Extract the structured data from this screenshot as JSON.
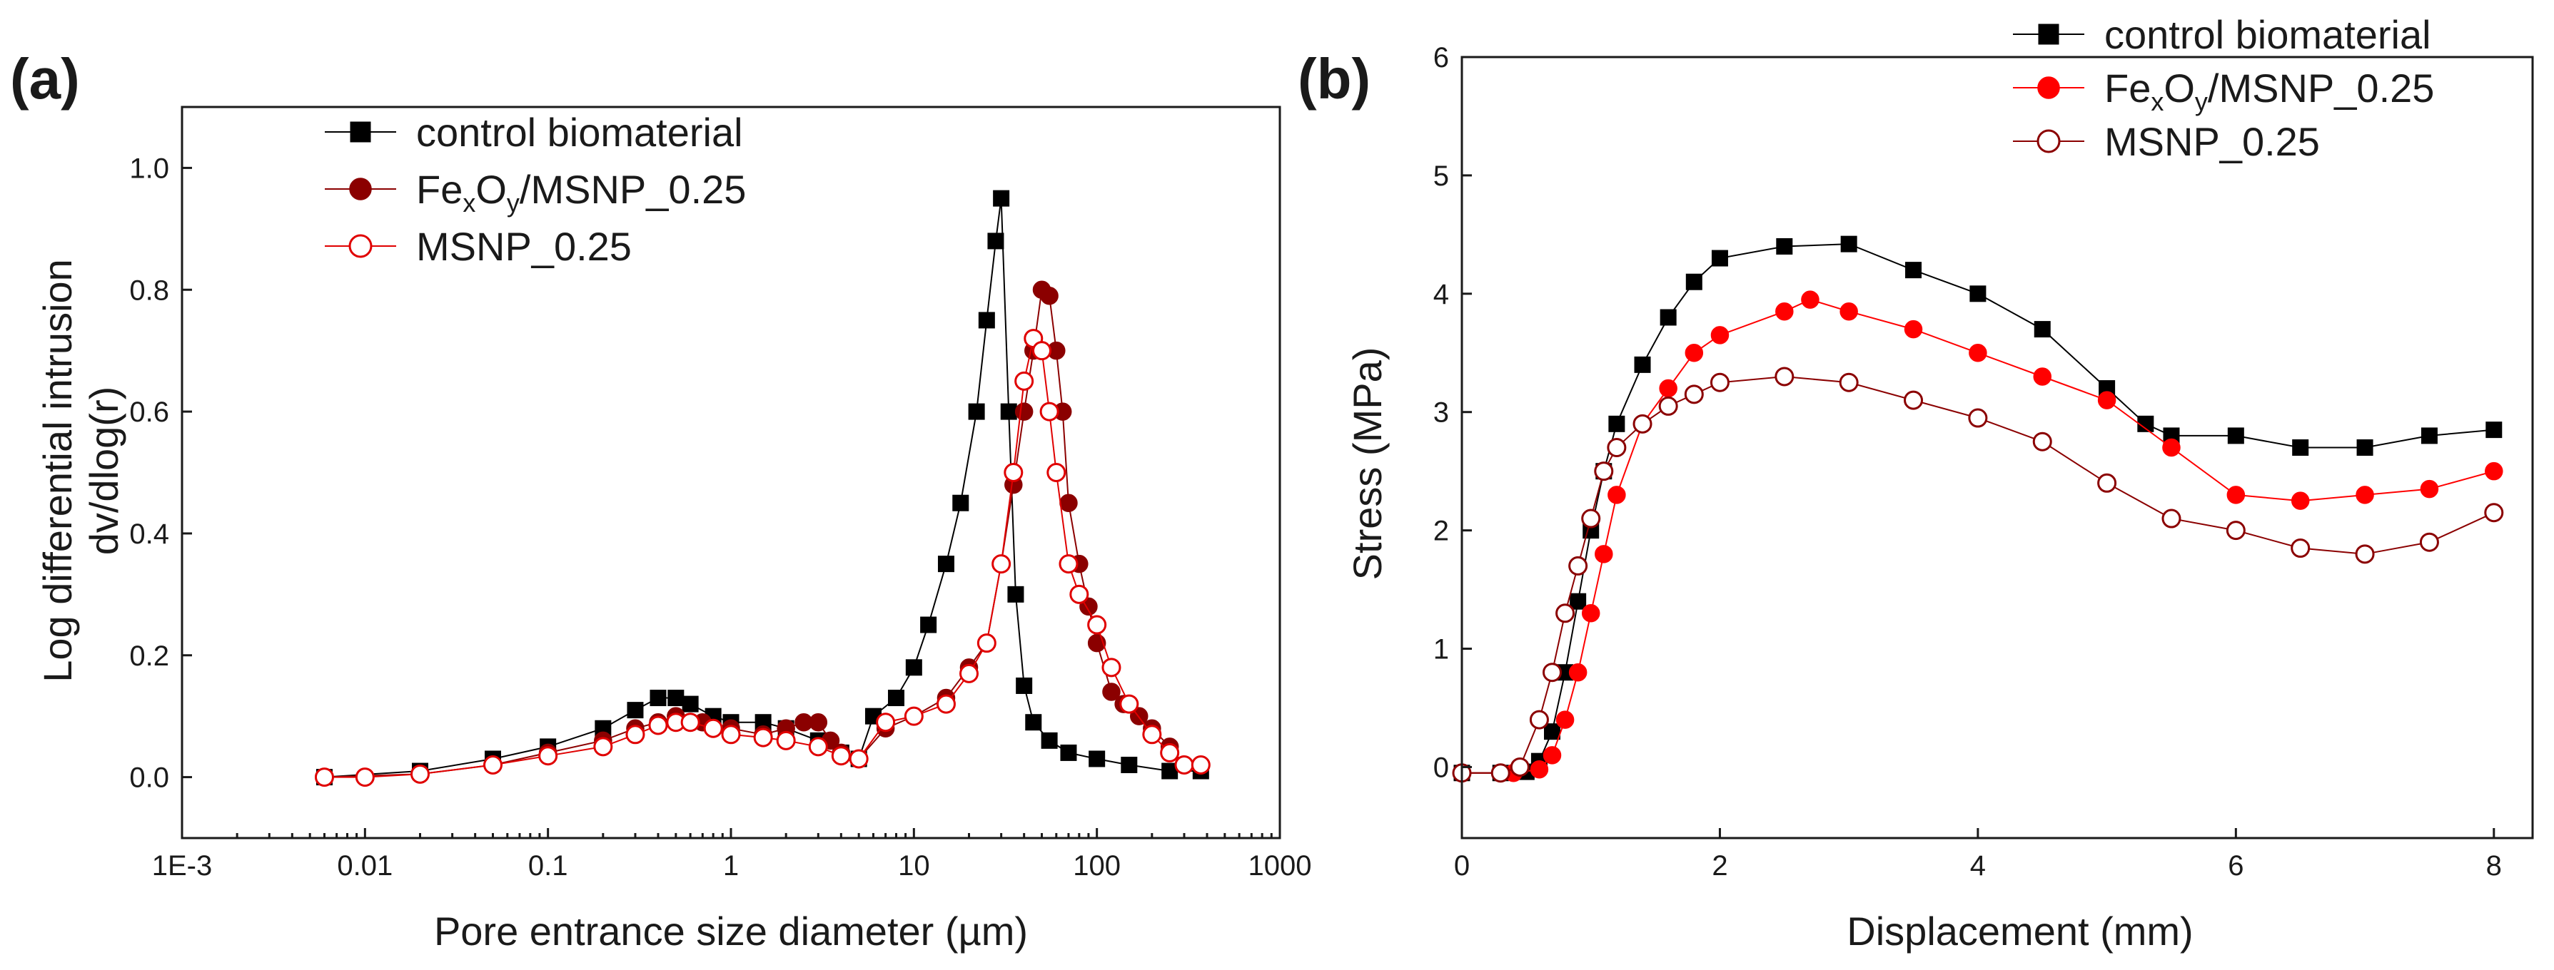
{
  "chart_data": [
    {
      "panel": "(a)",
      "type": "scatter",
      "xscale": "log",
      "xlim": [
        0.001,
        1000
      ],
      "ylim": [
        -0.1,
        1.1
      ],
      "xlabel": "Pore entrance size diameter (µm)",
      "ylabel_line1": "Log differential intrusion",
      "ylabel_line2": "dv/dlog(r)",
      "xticks": [
        0.001,
        0.01,
        0.1,
        1,
        10,
        100,
        1000
      ],
      "xtick_labels": [
        "1E-3",
        "0.01",
        "0.1",
        "1",
        "10",
        "100",
        "1000"
      ],
      "yticks": [
        0.0,
        0.2,
        0.4,
        0.6,
        0.8,
        1.0
      ],
      "ytick_labels": [
        "0.0",
        "0.2",
        "0.4",
        "0.6",
        "0.8",
        "1.0"
      ],
      "legend": {
        "position": "top-left"
      },
      "series": [
        {
          "name": "control biomaterial",
          "legend_label": "control biomaterial",
          "color": "#000000",
          "marker": "square-filled",
          "points": [
            [
              0.006,
              0
            ],
            [
              0.02,
              0.01
            ],
            [
              0.05,
              0.03
            ],
            [
              0.1,
              0.05
            ],
            [
              0.2,
              0.08
            ],
            [
              0.3,
              0.11
            ],
            [
              0.4,
              0.13
            ],
            [
              0.5,
              0.13
            ],
            [
              0.6,
              0.12
            ],
            [
              0.8,
              0.1
            ],
            [
              1,
              0.09
            ],
            [
              1.5,
              0.09
            ],
            [
              2,
              0.08
            ],
            [
              3,
              0.06
            ],
            [
              4,
              0.04
            ],
            [
              5,
              0.03
            ],
            [
              6,
              0.1
            ],
            [
              8,
              0.13
            ],
            [
              10,
              0.18
            ],
            [
              12,
              0.25
            ],
            [
              15,
              0.35
            ],
            [
              18,
              0.45
            ],
            [
              22,
              0.6
            ],
            [
              25,
              0.75
            ],
            [
              28,
              0.88
            ],
            [
              30,
              0.95
            ],
            [
              33,
              0.6
            ],
            [
              36,
              0.3
            ],
            [
              40,
              0.15
            ],
            [
              45,
              0.09
            ],
            [
              55,
              0.06
            ],
            [
              70,
              0.04
            ],
            [
              100,
              0.03
            ],
            [
              150,
              0.02
            ],
            [
              250,
              0.01
            ],
            [
              370,
              0.01
            ]
          ]
        },
        {
          "name": "FexOy/MSNP_0.25",
          "legend_label_parts": [
            "Fe",
            "x",
            "O",
            "y",
            "/MSNP_0.25"
          ],
          "color": "#8b0000",
          "marker": "circle-filled",
          "points": [
            [
              0.006,
              0
            ],
            [
              0.02,
              0.005
            ],
            [
              0.05,
              0.02
            ],
            [
              0.1,
              0.04
            ],
            [
              0.2,
              0.06
            ],
            [
              0.3,
              0.08
            ],
            [
              0.4,
              0.09
            ],
            [
              0.5,
              0.1
            ],
            [
              0.7,
              0.09
            ],
            [
              1,
              0.08
            ],
            [
              1.5,
              0.07
            ],
            [
              2,
              0.08
            ],
            [
              2.5,
              0.09
            ],
            [
              3,
              0.09
            ],
            [
              3.5,
              0.06
            ],
            [
              4,
              0.04
            ],
            [
              5,
              0.03
            ],
            [
              7,
              0.08
            ],
            [
              10,
              0.1
            ],
            [
              15,
              0.13
            ],
            [
              20,
              0.18
            ],
            [
              25,
              0.22
            ],
            [
              30,
              0.35
            ],
            [
              35,
              0.48
            ],
            [
              40,
              0.6
            ],
            [
              45,
              0.7
            ],
            [
              50,
              0.8
            ],
            [
              55,
              0.79
            ],
            [
              60,
              0.7
            ],
            [
              65,
              0.6
            ],
            [
              70,
              0.45
            ],
            [
              80,
              0.35
            ],
            [
              90,
              0.28
            ],
            [
              100,
              0.22
            ],
            [
              120,
              0.14
            ],
            [
              140,
              0.12
            ],
            [
              170,
              0.1
            ],
            [
              200,
              0.08
            ],
            [
              250,
              0.05
            ],
            [
              300,
              0.02
            ],
            [
              370,
              0.02
            ]
          ]
        },
        {
          "name": "MSNP_0.25",
          "legend_label": "MSNP_0.25",
          "color": "#e00000",
          "marker": "circle-open",
          "points": [
            [
              0.006,
              0
            ],
            [
              0.01,
              0
            ],
            [
              0.02,
              0.005
            ],
            [
              0.05,
              0.02
            ],
            [
              0.1,
              0.035
            ],
            [
              0.2,
              0.05
            ],
            [
              0.3,
              0.07
            ],
            [
              0.4,
              0.085
            ],
            [
              0.5,
              0.09
            ],
            [
              0.6,
              0.09
            ],
            [
              0.8,
              0.08
            ],
            [
              1,
              0.07
            ],
            [
              1.5,
              0.065
            ],
            [
              2,
              0.06
            ],
            [
              3,
              0.05
            ],
            [
              4,
              0.035
            ],
            [
              5,
              0.03
            ],
            [
              7,
              0.09
            ],
            [
              10,
              0.1
            ],
            [
              15,
              0.12
            ],
            [
              20,
              0.17
            ],
            [
              25,
              0.22
            ],
            [
              30,
              0.35
            ],
            [
              35,
              0.5
            ],
            [
              40,
              0.65
            ],
            [
              45,
              0.72
            ],
            [
              50,
              0.7
            ],
            [
              55,
              0.6
            ],
            [
              60,
              0.5
            ],
            [
              70,
              0.35
            ],
            [
              80,
              0.3
            ],
            [
              100,
              0.25
            ],
            [
              120,
              0.18
            ],
            [
              150,
              0.12
            ],
            [
              200,
              0.07
            ],
            [
              250,
              0.04
            ],
            [
              300,
              0.02
            ],
            [
              370,
              0.02
            ]
          ]
        }
      ]
    },
    {
      "panel": "(b)",
      "type": "scatter",
      "xscale": "linear",
      "xlim": [
        0,
        8.3
      ],
      "ylim": [
        -0.6,
        6
      ],
      "xlabel": "Displacement (mm)",
      "ylabel": "Stress (MPa)",
      "xticks": [
        0,
        2,
        4,
        6,
        8
      ],
      "xtick_labels": [
        "0",
        "2",
        "4",
        "6",
        "8"
      ],
      "yticks": [
        0,
        1,
        2,
        3,
        4,
        5,
        6
      ],
      "ytick_labels": [
        "0",
        "1",
        "2",
        "3",
        "4",
        "5",
        "6"
      ],
      "legend": {
        "position": "top-right"
      },
      "series": [
        {
          "name": "control biomaterial",
          "legend_label": "control biomaterial",
          "color": "#000000",
          "marker": "square-filled",
          "points": [
            [
              0,
              -0.05
            ],
            [
              0.3,
              -0.05
            ],
            [
              0.5,
              -0.04
            ],
            [
              0.6,
              0.05
            ],
            [
              0.7,
              0.3
            ],
            [
              0.8,
              0.8
            ],
            [
              0.9,
              1.4
            ],
            [
              1,
              2.0
            ],
            [
              1.1,
              2.5
            ],
            [
              1.2,
              2.9
            ],
            [
              1.4,
              3.4
            ],
            [
              1.6,
              3.8
            ],
            [
              1.8,
              4.1
            ],
            [
              2,
              4.3
            ],
            [
              2.5,
              4.4
            ],
            [
              3,
              4.42
            ],
            [
              3.5,
              4.2
            ],
            [
              4,
              4.0
            ],
            [
              4.5,
              3.7
            ],
            [
              5,
              3.2
            ],
            [
              5.3,
              2.9
            ],
            [
              5.5,
              2.8
            ],
            [
              6,
              2.8
            ],
            [
              6.5,
              2.7
            ],
            [
              7,
              2.7
            ],
            [
              7.5,
              2.8
            ],
            [
              8,
              2.85
            ]
          ]
        },
        {
          "name": "FexOy/MSNP_0.25",
          "legend_label_parts": [
            "Fe",
            "x",
            "O",
            "y",
            "/MSNP_0.25"
          ],
          "color": "#ff0000",
          "marker": "circle-filled",
          "points": [
            [
              0,
              -0.05
            ],
            [
              0.4,
              -0.05
            ],
            [
              0.6,
              -0.02
            ],
            [
              0.7,
              0.1
            ],
            [
              0.8,
              0.4
            ],
            [
              0.9,
              0.8
            ],
            [
              1,
              1.3
            ],
            [
              1.1,
              1.8
            ],
            [
              1.2,
              2.3
            ],
            [
              1.4,
              2.9
            ],
            [
              1.6,
              3.2
            ],
            [
              1.8,
              3.5
            ],
            [
              2,
              3.65
            ],
            [
              2.5,
              3.85
            ],
            [
              2.7,
              3.95
            ],
            [
              3,
              3.85
            ],
            [
              3.5,
              3.7
            ],
            [
              4,
              3.5
            ],
            [
              4.5,
              3.3
            ],
            [
              5,
              3.1
            ],
            [
              5.5,
              2.7
            ],
            [
              6,
              2.3
            ],
            [
              6.5,
              2.25
            ],
            [
              7,
              2.3
            ],
            [
              7.5,
              2.35
            ],
            [
              8,
              2.5
            ]
          ]
        },
        {
          "name": "MSNP_0.25",
          "legend_label": "MSNP_0.25",
          "color": "#8b0000",
          "marker": "circle-open",
          "points": [
            [
              0,
              -0.05
            ],
            [
              0.3,
              -0.05
            ],
            [
              0.45,
              0
            ],
            [
              0.6,
              0.4
            ],
            [
              0.7,
              0.8
            ],
            [
              0.8,
              1.3
            ],
            [
              0.9,
              1.7
            ],
            [
              1,
              2.1
            ],
            [
              1.1,
              2.5
            ],
            [
              1.2,
              2.7
            ],
            [
              1.4,
              2.9
            ],
            [
              1.6,
              3.05
            ],
            [
              1.8,
              3.15
            ],
            [
              2,
              3.25
            ],
            [
              2.5,
              3.3
            ],
            [
              3,
              3.25
            ],
            [
              3.5,
              3.1
            ],
            [
              4,
              2.95
            ],
            [
              4.5,
              2.75
            ],
            [
              5,
              2.4
            ],
            [
              5.5,
              2.1
            ],
            [
              6,
              2.0
            ],
            [
              6.5,
              1.85
            ],
            [
              7,
              1.8
            ],
            [
              7.5,
              1.9
            ],
            [
              8,
              2.15
            ]
          ]
        }
      ]
    }
  ]
}
